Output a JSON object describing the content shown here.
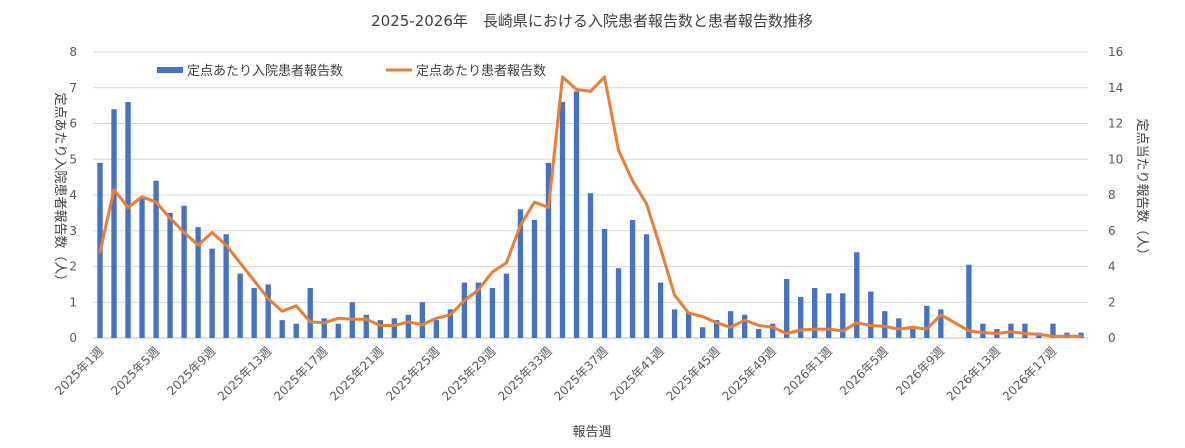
{
  "chart_data": {
    "type": "bar",
    "title": "2025-2026年　長崎県における入院患者報告数と患者報告数推移",
    "xlabel": "報告週",
    "ylabel_left": "定点あたり入院患者報告数（人）",
    "ylabel_right": "定点当たり報告数（人）",
    "ylim_left": [
      0,
      8
    ],
    "ylim_right": [
      0,
      16
    ],
    "yticks_left": [
      "0",
      "1",
      "2",
      "3",
      "4",
      "5",
      "6",
      "7",
      "8"
    ],
    "yticks_right": [
      "0",
      "2",
      "4",
      "6",
      "8",
      "10",
      "12",
      "14",
      "16"
    ],
    "grid": true,
    "legend_position": "top-left",
    "categories": [
      "2025年1週",
      "2025年2週",
      "2025年3週",
      "2025年4週",
      "2025年5週",
      "2025年6週",
      "2025年7週",
      "2025年8週",
      "2025年9週",
      "2025年10週",
      "2025年11週",
      "2025年12週",
      "2025年13週",
      "2025年14週",
      "2025年15週",
      "2025年16週",
      "2025年17週",
      "2025年18週",
      "2025年19週",
      "2025年20週",
      "2025年21週",
      "2025年22週",
      "2025年23週",
      "2025年24週",
      "2025年25週",
      "2025年26週",
      "2025年27週",
      "2025年28週",
      "2025年29週",
      "2025年30週",
      "2025年31週",
      "2025年32週",
      "2025年33週",
      "2025年34週",
      "2025年35週",
      "2025年36週",
      "2025年37週",
      "2025年38週",
      "2025年39週",
      "2025年40週",
      "2025年41週",
      "2025年42週",
      "2025年43週",
      "2025年44週",
      "2025年45週",
      "2025年46週",
      "2025年47週",
      "2025年48週",
      "2025年49週",
      "2025年50週",
      "2025年51週",
      "2025年52週",
      "2026年1週",
      "2026年2週",
      "2026年3週",
      "2026年4週",
      "2026年5週",
      "2026年6週",
      "2026年7週",
      "2026年8週",
      "2026年9週",
      "2026年10週",
      "2026年11週",
      "2026年12週",
      "2026年13週",
      "2026年14週",
      "2026年15週",
      "2026年16週",
      "2026年17週",
      "2026年18週",
      "2026年19週"
    ],
    "x_tick_labels": [
      "2025年1週",
      "2025年5週",
      "2025年9週",
      "2025年13週",
      "2025年17週",
      "2025年21週",
      "2025年25週",
      "2025年29週",
      "2025年33週",
      "2025年37週",
      "2025年41週",
      "2025年45週",
      "2025年49週",
      "2026年1週",
      "2026年5週",
      "2026年9週",
      "2026年13週",
      "2026年17週"
    ],
    "series": [
      {
        "name": "定点あたり入院患者報告数",
        "type": "bar",
        "axis": "left",
        "color": "#4472C4",
        "values": [
          4.9,
          6.4,
          6.6,
          3.9,
          4.4,
          3.5,
          3.7,
          3.1,
          2.5,
          2.9,
          1.8,
          1.4,
          1.5,
          0.5,
          0.4,
          1.4,
          0.55,
          0.4,
          1.0,
          0.65,
          0.5,
          0.55,
          0.65,
          1.0,
          0.5,
          0.8,
          1.55,
          1.55,
          1.4,
          1.8,
          3.6,
          3.3,
          4.9,
          6.6,
          6.9,
          4.05,
          3.05,
          1.95,
          3.3,
          2.9,
          1.55,
          0.8,
          0.7,
          0.3,
          0.5,
          0.75,
          0.65,
          0.25,
          0.4,
          1.65,
          1.15,
          1.4,
          1.25,
          1.25,
          2.4,
          1.3,
          0.75,
          0.55,
          0.25,
          0.9,
          0.8,
          0.0,
          2.05,
          0.4,
          0.25,
          0.4,
          0.4,
          0.15,
          0.4,
          0.15,
          0.15
        ]
      },
      {
        "name": "定点あたり患者報告数",
        "type": "line",
        "axis": "right",
        "color": "#ED7D31",
        "values": [
          4.8,
          8.3,
          7.3,
          7.9,
          7.6,
          6.7,
          5.9,
          5.2,
          5.9,
          5.2,
          4.2,
          3.2,
          2.2,
          1.5,
          1.8,
          0.9,
          0.85,
          1.1,
          1.05,
          1.05,
          0.7,
          0.7,
          0.9,
          0.75,
          1.1,
          1.3,
          2.1,
          2.7,
          3.7,
          4.2,
          6.3,
          7.6,
          7.3,
          14.6,
          13.9,
          13.8,
          14.6,
          10.5,
          8.8,
          7.5,
          5.0,
          2.4,
          1.4,
          1.2,
          0.85,
          0.6,
          1.0,
          0.7,
          0.6,
          0.25,
          0.45,
          0.5,
          0.5,
          0.4,
          0.85,
          0.7,
          0.65,
          0.5,
          0.6,
          0.5,
          1.3,
          0.85,
          0.4,
          0.3,
          0.25,
          0.35,
          0.25,
          0.2,
          0.1,
          0.1,
          0.1
        ]
      }
    ]
  }
}
